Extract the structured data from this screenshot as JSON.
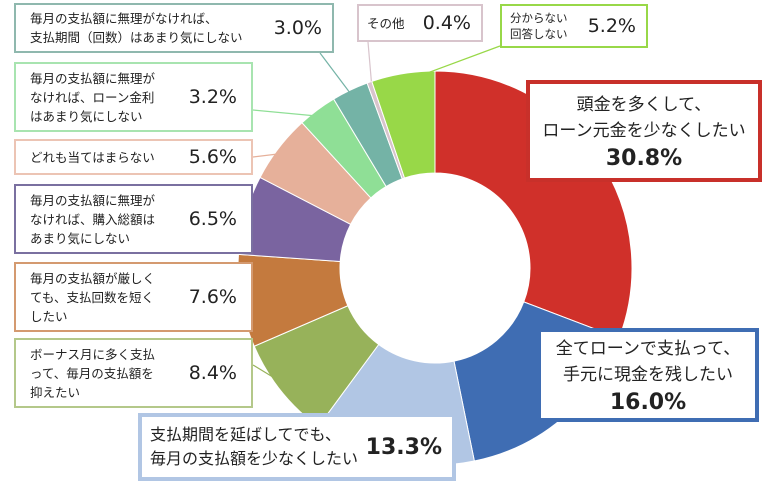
{
  "chart_data": {
    "type": "pie",
    "donut": true,
    "slices": [
      {
        "label": "頭金を多くして、\nローン元金を少なくしたい",
        "value": 30.8,
        "display": "30.8%",
        "color": "#d0302a"
      },
      {
        "label": "全てローンで支払って、\n手元に現金を残したい",
        "value": 16.0,
        "display": "16.0%",
        "color": "#3f6db3"
      },
      {
        "label": "支払期間を延ばしてでも、\n毎月の支払額を少なくしたい",
        "value": 13.3,
        "display": "13.3%",
        "color": "#b1c6e4"
      },
      {
        "label": "ボーナス月に多く支払\nって、毎月の支払額を\n抑えたい",
        "value": 8.4,
        "display": "8.4%",
        "color": "#97b25a"
      },
      {
        "label": "毎月の支払額が厳しく\nても、支払回数を短く\nしたい",
        "value": 7.6,
        "display": "7.6%",
        "color": "#c47a3e"
      },
      {
        "label": "毎月の支払額に無理が\nなければ、購入総額は\nあまり気にしない",
        "value": 6.5,
        "display": "6.5%",
        "color": "#7a64a0"
      },
      {
        "label": "どれも当てはまらない",
        "value": 5.6,
        "display": "5.6%",
        "color": "#e6b09a"
      },
      {
        "label": "毎月の支払額に無理が\nなければ、ローン金利\nはあまり気にしない",
        "value": 3.2,
        "display": "3.2%",
        "color": "#8fdf96"
      },
      {
        "label": "毎月の支払額に無理がなければ、\n支払期間（回数）はあまり気にしない",
        "value": 3.0,
        "display": "3.0%",
        "color": "#74b3a6"
      },
      {
        "label": "その他",
        "value": 0.4,
        "display": "0.4%",
        "color": "#d8c4cc"
      },
      {
        "label": "分からない\n回答しない",
        "value": 5.2,
        "display": "5.2%",
        "color": "#98d848"
      }
    ]
  }
}
